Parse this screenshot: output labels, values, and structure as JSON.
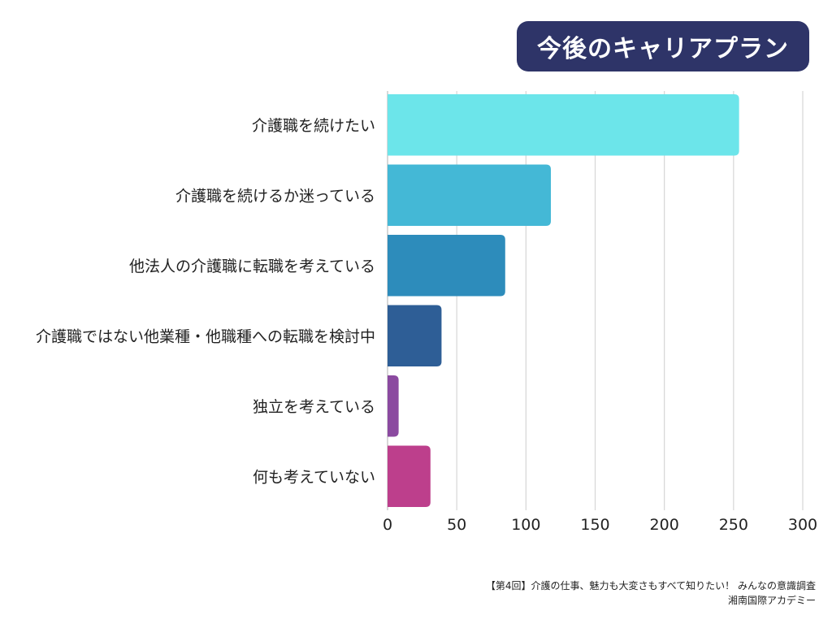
{
  "header": {
    "title": "今後のキャリアプラン"
  },
  "colors": {
    "title_bg": "#2e3468",
    "grid": "#d6d6d6"
  },
  "chart_data": {
    "type": "bar",
    "orientation": "horizontal",
    "title": "今後のキャリアプラン",
    "xlabel": "",
    "ylabel": "",
    "categories": [
      "介護職を続けたい",
      "介護職を続けるか迷っている",
      "他法人の介護職に転職を考えている",
      "介護職ではない他業種・他職種への転職を検討中",
      "独立を考えている",
      "何も考えていない"
    ],
    "values": [
      254,
      118,
      85,
      39,
      8,
      31
    ],
    "bar_colors": [
      "#6ce5ea",
      "#44b8d6",
      "#2d8cbb",
      "#2e5e96",
      "#8b4aa0",
      "#bd3f8c"
    ],
    "xlim": [
      0,
      300
    ],
    "xticks": [
      "0",
      "50",
      "100",
      "150",
      "200",
      "250",
      "300"
    ],
    "xtick_values": [
      0,
      50,
      100,
      150,
      200,
      250,
      300
    ],
    "grid": true,
    "legend": "none"
  },
  "footer": {
    "source": "【第4回】介護の仕事、魅力も大変さもすべて知りたい！ みんなの意識調査",
    "organization": "湘南国際アカデミー"
  }
}
